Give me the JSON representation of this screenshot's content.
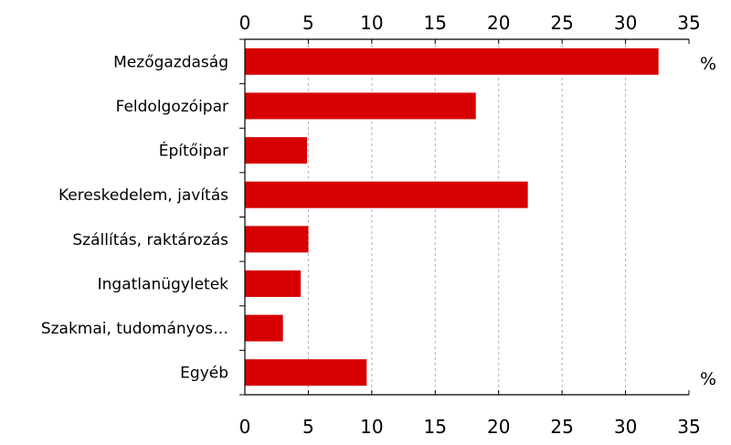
{
  "chart_data": {
    "type": "bar",
    "orientation": "horizontal",
    "categories": [
      "Mezőgazdaság",
      "Feldolgozóipar",
      "Építőipar",
      "Kereskedelem, javítás",
      "Szállítás, raktározás",
      "Ingatlanügyletek",
      "Szakmai, tudományos…",
      "Egyéb"
    ],
    "values": [
      32.6,
      18.2,
      4.9,
      22.3,
      5.0,
      4.4,
      3.0,
      9.6
    ],
    "xlim": [
      0,
      35
    ],
    "x_ticks": [
      0,
      5,
      10,
      15,
      20,
      25,
      30,
      35
    ],
    "tick_labels": [
      "0",
      "5",
      "10",
      "15",
      "20",
      "25",
      "30",
      "35"
    ],
    "unit_top": "%",
    "unit_bottom": "%",
    "grid": "vertical dashed",
    "axes_ticks": "top and bottom",
    "bar_color": "#d70000",
    "grid_color": "#b0b0b0",
    "axis_color": "#000000"
  }
}
